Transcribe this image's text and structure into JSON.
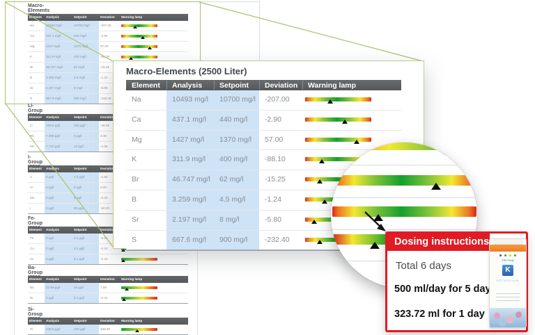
{
  "columns": [
    "Element",
    "Analysis",
    "Setpoint",
    "Deviation",
    "Warning lamp"
  ],
  "overlay": {
    "title": "Macro-Elements (2500 Liter)",
    "rows": [
      {
        "element": "Na",
        "analysis": "10493 mg/l",
        "setpoint": "10700 mg/l",
        "deviation": "-207.00",
        "lamp_pos": 0.38,
        "lamp": "normal"
      },
      {
        "element": "Ca",
        "analysis": "437.1 mg/l",
        "setpoint": "440 mg/l",
        "deviation": "-2.90",
        "lamp_pos": 0.6,
        "lamp": "normal"
      },
      {
        "element": "Mg",
        "analysis": "1427 mg/l",
        "setpoint": "1370 mg/l",
        "deviation": "57.00",
        "lamp_pos": 0.78,
        "lamp": "normal"
      },
      {
        "element": "K",
        "analysis": "311.9 mg/l",
        "setpoint": "400 mg/l",
        "deviation": "-88.10",
        "lamp_pos": 0.26,
        "lamp": "normal"
      },
      {
        "element": "Br",
        "analysis": "46.747 mg/l",
        "setpoint": "62 mg/l",
        "deviation": "-15.25",
        "lamp_pos": 0.23,
        "lamp": "normal"
      },
      {
        "element": "B",
        "analysis": "3.259 mg/l",
        "setpoint": "4.5 mg/l",
        "deviation": "-1.24",
        "lamp_pos": 0.3,
        "lamp": "normal"
      },
      {
        "element": "Sr",
        "analysis": "2.197 mg/l",
        "setpoint": "8 mg/l",
        "deviation": "-5.80",
        "lamp_pos": 0.14,
        "lamp": "normal"
      },
      {
        "element": "S",
        "analysis": "667.6 mg/l",
        "setpoint": "900 mg/l",
        "deviation": "-232.40",
        "lamp_pos": 0.23,
        "lamp": "normal"
      }
    ]
  },
  "background": {
    "macro": {
      "title": "Macro-Elements (2500 Liter)",
      "rows": [
        {
          "element": "Na",
          "analysis": "10493 mg/l",
          "setpoint": "10700 mg/l",
          "deviation": "-207.00",
          "lamp_pos": 0.38,
          "lamp": "normal"
        },
        {
          "element": "Ca",
          "analysis": "437.1 mg/l",
          "setpoint": "440 mg/l",
          "deviation": "-2.90",
          "lamp_pos": 0.6,
          "lamp": "normal"
        },
        {
          "element": "Mg",
          "analysis": "1427 mg/l",
          "setpoint": "1370 mg/l",
          "deviation": "57.00",
          "lamp_pos": 0.78,
          "lamp": "normal"
        },
        {
          "element": "K",
          "analysis": "311.9 mg/l",
          "setpoint": "400 mg/l",
          "deviation": "-88.10",
          "lamp_pos": 0.26,
          "lamp": "normal"
        },
        {
          "element": "Br",
          "analysis": "46.747 mg/l",
          "setpoint": "62 mg/l",
          "deviation": "-15.25",
          "lamp_pos": 0.23,
          "lamp": "normal"
        },
        {
          "element": "B",
          "analysis": "3.259 mg/l",
          "setpoint": "4.5 mg/l",
          "deviation": "-1.24",
          "lamp_pos": 0.3,
          "lamp": "normal"
        },
        {
          "element": "Sr",
          "analysis": "2.197 mg/l",
          "setpoint": "8 mg/l",
          "deviation": "-5.80",
          "lamp_pos": 0.14,
          "lamp": "normal"
        },
        {
          "element": "S",
          "analysis": "667.6 mg/l",
          "setpoint": "900 mg/l",
          "deviation": "-232.40",
          "lamp_pos": 0.23,
          "lamp": "normal"
        }
      ]
    },
    "groups": [
      {
        "title": "Li-Group (2500 Liter)",
        "rows": [
          {
            "element": "Li",
            "analysis": "159.5 µg/l",
            "setpoint": "200 µg/l",
            "deviation": "-40.49",
            "lamp_pos": 0.3,
            "lamp": "normal"
          },
          {
            "element": "Rb",
            "analysis": "7.296 µg/l",
            "setpoint": "5 µg/l",
            "deviation": "2.30",
            "lamp_pos": 0.6,
            "lamp": "normal"
          },
          {
            "element": "Mo",
            "analysis": "7.743 µg/l",
            "setpoint": "12 µg/l",
            "deviation": "-4.26",
            "lamp_pos": 0.3,
            "lamp": "normal"
          }
        ]
      },
      {
        "title": "I-Group (2500 Liter)",
        "rows": [
          {
            "element": "V",
            "analysis": "0 µg/l",
            "setpoint": "1.5 µg/l",
            "deviation": "-1.50",
            "lamp_pos": 0.2,
            "lamp": "normal"
          },
          {
            "element": "Cr",
            "analysis": "0 µg/l",
            "setpoint": "0 µg/l",
            "deviation": "0.00",
            "lamp_pos": 0.2,
            "lamp": "normal"
          },
          {
            "element": "Mn",
            "analysis": "0 µg/l",
            "setpoint": "5 µg/l",
            "deviation": "-5.00",
            "lamp_pos": 0.2,
            "lamp": "normal"
          },
          {
            "element": "I",
            "analysis": "0 µg/l",
            "setpoint": "60 µg/l",
            "deviation": "-60.00",
            "lamp_pos": 0.2,
            "lamp": "normal"
          }
        ]
      },
      {
        "title": "Fe-Group (2500 Liter)",
        "rows": [
          {
            "element": "Fe",
            "analysis": "0 µg/l",
            "setpoint": "0.1 µg/l",
            "deviation": "-0.10",
            "lamp_pos": 0.05,
            "lamp": "reverse"
          },
          {
            "element": "Cu",
            "analysis": "0 µg/l",
            "setpoint": "0.1 µg/l",
            "deviation": "-0.10",
            "lamp_pos": 0.05,
            "lamp": "reverse"
          },
          {
            "element": "Zn",
            "analysis": "0 µg/l",
            "setpoint": "0.1 µg/l",
            "deviation": "-0.10",
            "lamp_pos": 0.05,
            "lamp": "reverse"
          }
        ]
      },
      {
        "title": "Ba-Group (2500 Liter)",
        "rows": [
          {
            "element": "Ba",
            "analysis": "22.59 µg/l",
            "setpoint": "15 µg/l",
            "deviation": "7.59",
            "lamp_pos": 0.16,
            "lamp": "reverse"
          },
          {
            "element": "Ni",
            "analysis": "0 µg/l",
            "setpoint": "0.1 µg/l",
            "deviation": "-0.10",
            "lamp_pos": 0.08,
            "lamp": "reverse"
          }
        ]
      },
      {
        "title": "Si-Group (2500 Liter)",
        "rows": [
          {
            "element": "Si",
            "analysis": "438.6 µg/l",
            "setpoint": "100 µg/l",
            "deviation": "338.60",
            "lamp_pos": 0.45,
            "lamp": "reverse"
          }
        ]
      }
    ]
  },
  "magnifier": {
    "bars": [
      {
        "name": "lamp-k-magnified",
        "gradient": "k",
        "marker_pos": 0.74
      },
      {
        "name": "lamp-br-magnified",
        "gradient": "normal",
        "marker_pos": 0.72
      },
      {
        "name": "lamp-b-magnified",
        "gradient": "normal",
        "marker_pos": 0.32
      },
      {
        "name": "lamp-sr-magnified",
        "gradient": "partial",
        "marker_pos": 0.3
      }
    ]
  },
  "dosing": {
    "header": "Dosing instructions",
    "total": "Total 6 days",
    "line1": "500 ml/day for 5 days",
    "line2": "323.72 ml for 1 day",
    "product": {
      "brand": "TRITON",
      "element_letter": "K",
      "element_name": "POTASSIUM"
    }
  },
  "colors": {
    "accent_green": "#a6c46a",
    "dosing_red": "#e01b24",
    "header_gray": "#55585a",
    "highlight_blue": "#cfe3f6",
    "lamp_red": "#d7281d",
    "lamp_yellow": "#f2e832",
    "lamp_green": "#14a02c"
  }
}
